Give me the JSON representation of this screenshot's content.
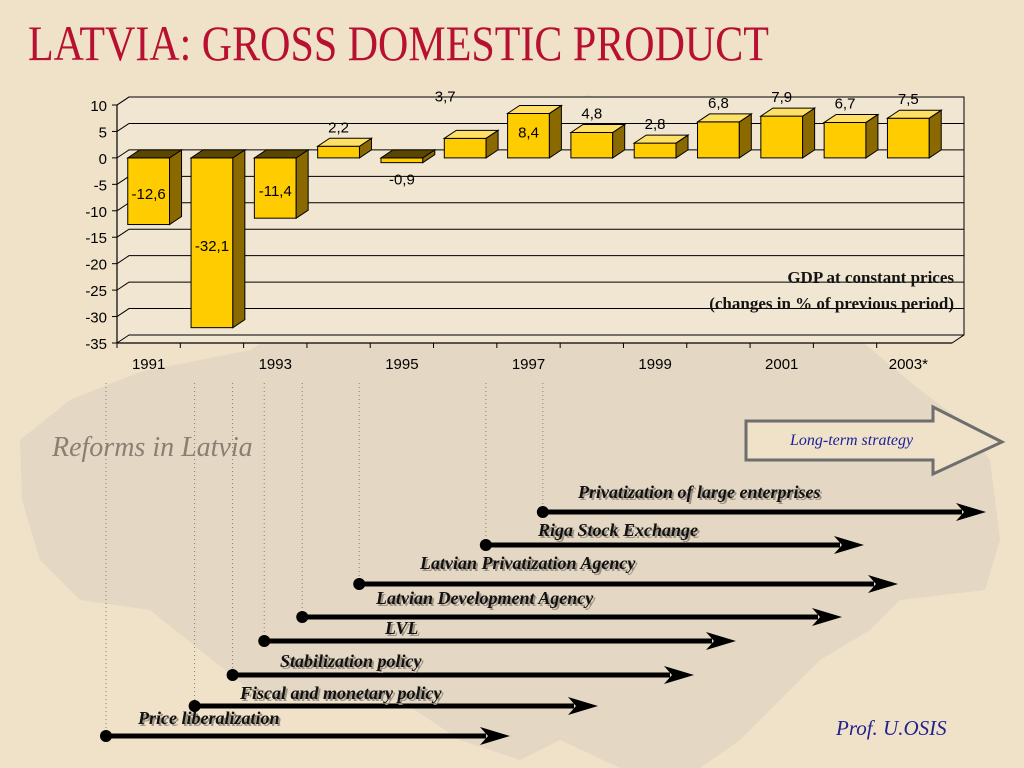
{
  "title": "LATVIA: GROSS DOMESTIC PRODUCT",
  "chart_note": {
    "line1": "GDP at constant prices",
    "line2": "(changes in % of previous period)"
  },
  "reforms_title": "Reforms in Latvia",
  "long_term_strategy": "Long-term strategy",
  "author": "Prof. U.OSIS",
  "reforms": [
    {
      "label": "Price liberalization",
      "year_start": 1990.8
    },
    {
      "label": "Fiscal and monetary policy",
      "year_start": 1992.2
    },
    {
      "label": "Stabilization policy",
      "year_start": 1992.8
    },
    {
      "label": "LVL",
      "year_start": 1993.3
    },
    {
      "label": "Latvian Development Agency",
      "year_start": 1993.9
    },
    {
      "label": "Latvian Privatization Agency",
      "year_start": 1994.8
    },
    {
      "label": "Riga Stock Exchange",
      "year_start": 1996.8
    },
    {
      "label": "Privatization of large enterprises",
      "year_start": 1997.7
    }
  ],
  "colors": {
    "title": "#b81030",
    "bar_front": "#ffcc00",
    "bar_side": "#8a6a00",
    "bar_top": "#ffe066",
    "arrow": "#000000",
    "author": "#22238c"
  },
  "chart_data": {
    "type": "bar",
    "categories": [
      "1991",
      "1992",
      "1993",
      "1994",
      "1995",
      "1996",
      "1997",
      "1998",
      "1999",
      "2000",
      "2001",
      "2002",
      "2003*"
    ],
    "tick_labels": [
      "1991",
      "1993",
      "1995",
      "1997",
      "1999",
      "2001",
      "2003*"
    ],
    "values": [
      -12.6,
      -32.1,
      -11.4,
      2.2,
      -0.9,
      3.7,
      8.4,
      4.8,
      2.8,
      6.8,
      7.9,
      6.7,
      7.5
    ],
    "data_labels": [
      "-12,6",
      "-32,1",
      "-11,4",
      "2,2",
      "-0,9",
      "3,7",
      "8,4",
      "4,8",
      "2,8",
      "6,8",
      "7,9",
      "6,7",
      "7,5"
    ],
    "ylim": [
      -35,
      10
    ],
    "yticks": [
      10,
      5,
      0,
      -5,
      -10,
      -15,
      -20,
      -25,
      -30,
      -35
    ],
    "grid": true,
    "bar_style": "3d"
  }
}
